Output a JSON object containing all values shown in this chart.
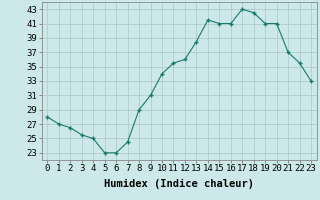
{
  "x": [
    0,
    1,
    2,
    3,
    4,
    5,
    6,
    7,
    8,
    9,
    10,
    11,
    12,
    13,
    14,
    15,
    16,
    17,
    18,
    19,
    20,
    21,
    22,
    23
  ],
  "y": [
    28,
    27,
    26.5,
    25.5,
    25,
    23,
    23,
    24.5,
    29,
    31,
    34,
    35.5,
    36,
    38.5,
    41.5,
    41,
    41,
    43,
    42.5,
    41,
    41,
    37,
    35.5,
    33
  ],
  "line_color": "#1a7a6e",
  "marker_color": "#1a7a6e",
  "bg_color": "#cce8e8",
  "grid_color": "#b0cccc",
  "xlabel": "Humidex (Indice chaleur)",
  "ylabel_ticks": [
    23,
    25,
    27,
    29,
    31,
    33,
    35,
    37,
    39,
    41,
    43
  ],
  "xlim": [
    -0.5,
    23.5
  ],
  "ylim": [
    22,
    44
  ],
  "xtick_labels": [
    "0",
    "1",
    "2",
    "3",
    "4",
    "5",
    "6",
    "7",
    "8",
    "9",
    "10",
    "11",
    "12",
    "13",
    "14",
    "15",
    "16",
    "17",
    "18",
    "19",
    "20",
    "21",
    "22",
    "23"
  ],
  "tick_fontsize": 6.5,
  "label_fontsize": 7.5
}
